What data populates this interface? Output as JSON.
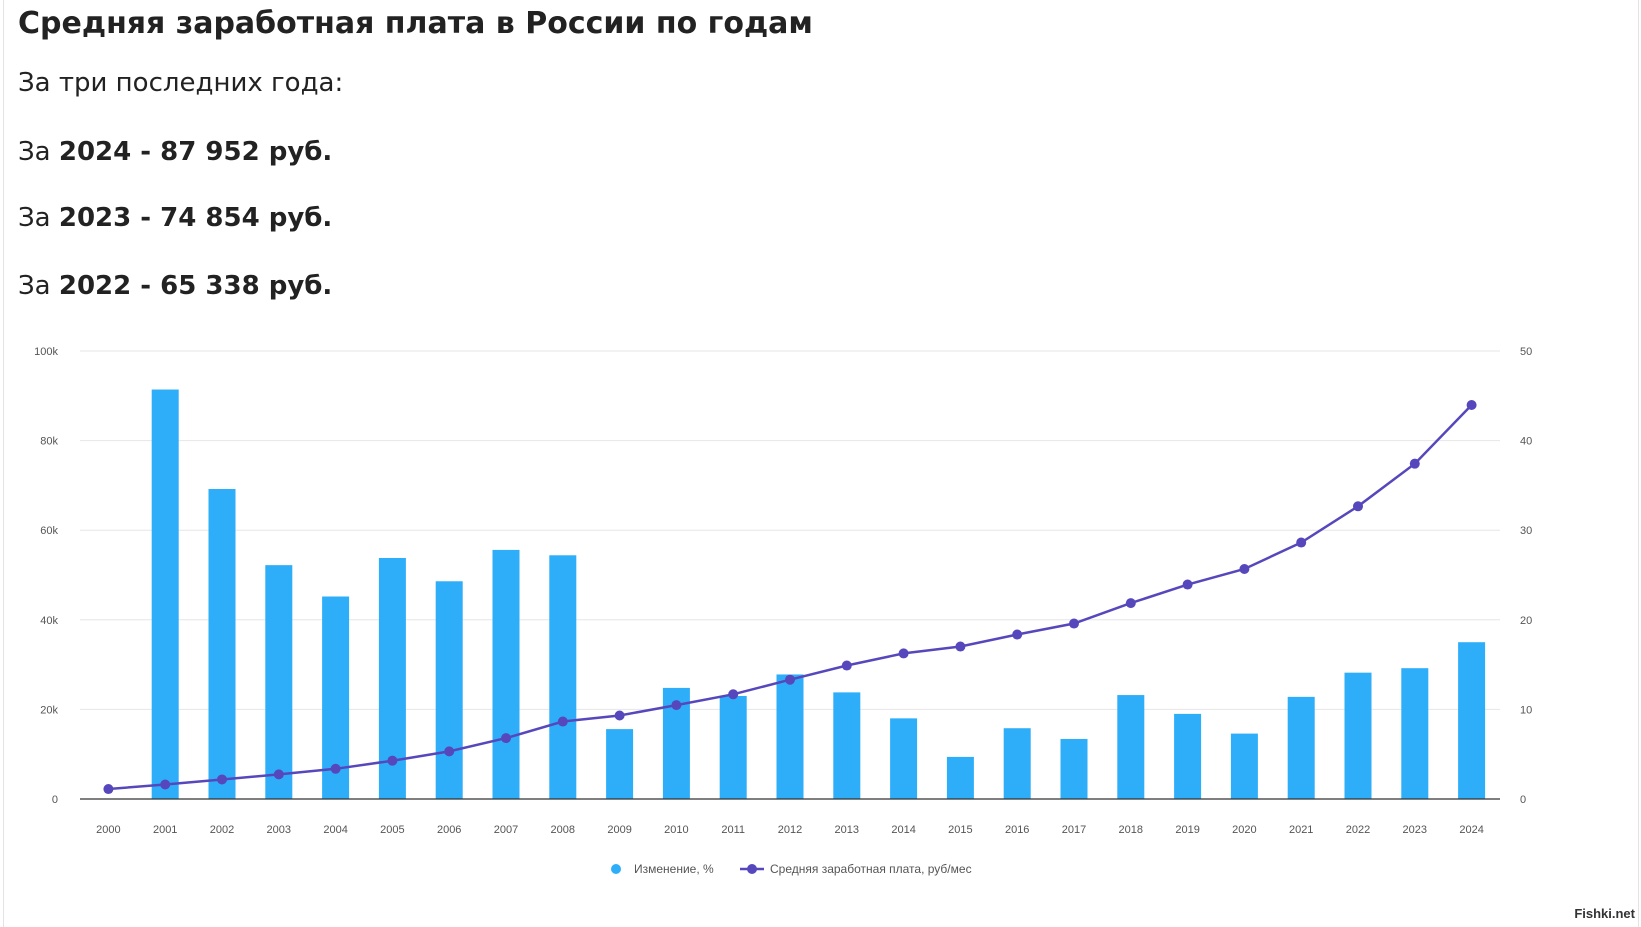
{
  "header": {
    "title": "Средняя заработная плата в России по годам",
    "intro": "За три последних года:"
  },
  "lines": [
    {
      "prefix": "За ",
      "year": "2024",
      "sep": " - ",
      "amount": "87 952 руб."
    },
    {
      "prefix": "За ",
      "year": "2023",
      "sep": " - ",
      "amount": "74 854 руб."
    },
    {
      "prefix": "За ",
      "year": "2022",
      "sep": " - ",
      "amount": "65 338 руб."
    }
  ],
  "watermark": "Fishki.net",
  "colors": {
    "bar": "#2eaef9",
    "line": "#5648bc",
    "grid": "#e6e6e6",
    "axis": "#333333"
  },
  "chart_data": {
    "type": "bar",
    "categories": [
      "2000",
      "2001",
      "2002",
      "2003",
      "2004",
      "2005",
      "2006",
      "2007",
      "2008",
      "2009",
      "2010",
      "2011",
      "2012",
      "2013",
      "2014",
      "2015",
      "2016",
      "2017",
      "2018",
      "2019",
      "2020",
      "2021",
      "2022",
      "2023",
      "2024"
    ],
    "left_axis": {
      "ticks": [
        "0",
        "20k",
        "40k",
        "60k",
        "80k",
        "100k"
      ],
      "ylim": [
        0,
        100000
      ]
    },
    "right_axis": {
      "ticks": [
        "0",
        "10",
        "20",
        "30",
        "40",
        "50"
      ],
      "ylim": [
        0,
        50
      ]
    },
    "legend_position": "bottom",
    "grid": true,
    "series": [
      {
        "name": "Изменение, %",
        "type": "bar",
        "axis": "right",
        "values": [
          null,
          45.7,
          34.6,
          26.1,
          22.6,
          26.9,
          24.3,
          27.8,
          27.2,
          7.8,
          12.4,
          11.5,
          13.9,
          11.9,
          9.0,
          4.7,
          7.9,
          6.7,
          11.6,
          9.5,
          7.3,
          11.4,
          14.1,
          14.6,
          17.5
        ]
      },
      {
        "name": "Средняя заработная плата, руб/мес",
        "type": "line",
        "axis": "left",
        "values": [
          2223,
          3240,
          4360,
          5499,
          6740,
          8555,
          10634,
          13593,
          17290,
          18638,
          20952,
          23369,
          26629,
          29792,
          32495,
          34030,
          36709,
          39167,
          43724,
          47867,
          51344,
          57244,
          65338,
          74854,
          87952
        ]
      }
    ]
  }
}
